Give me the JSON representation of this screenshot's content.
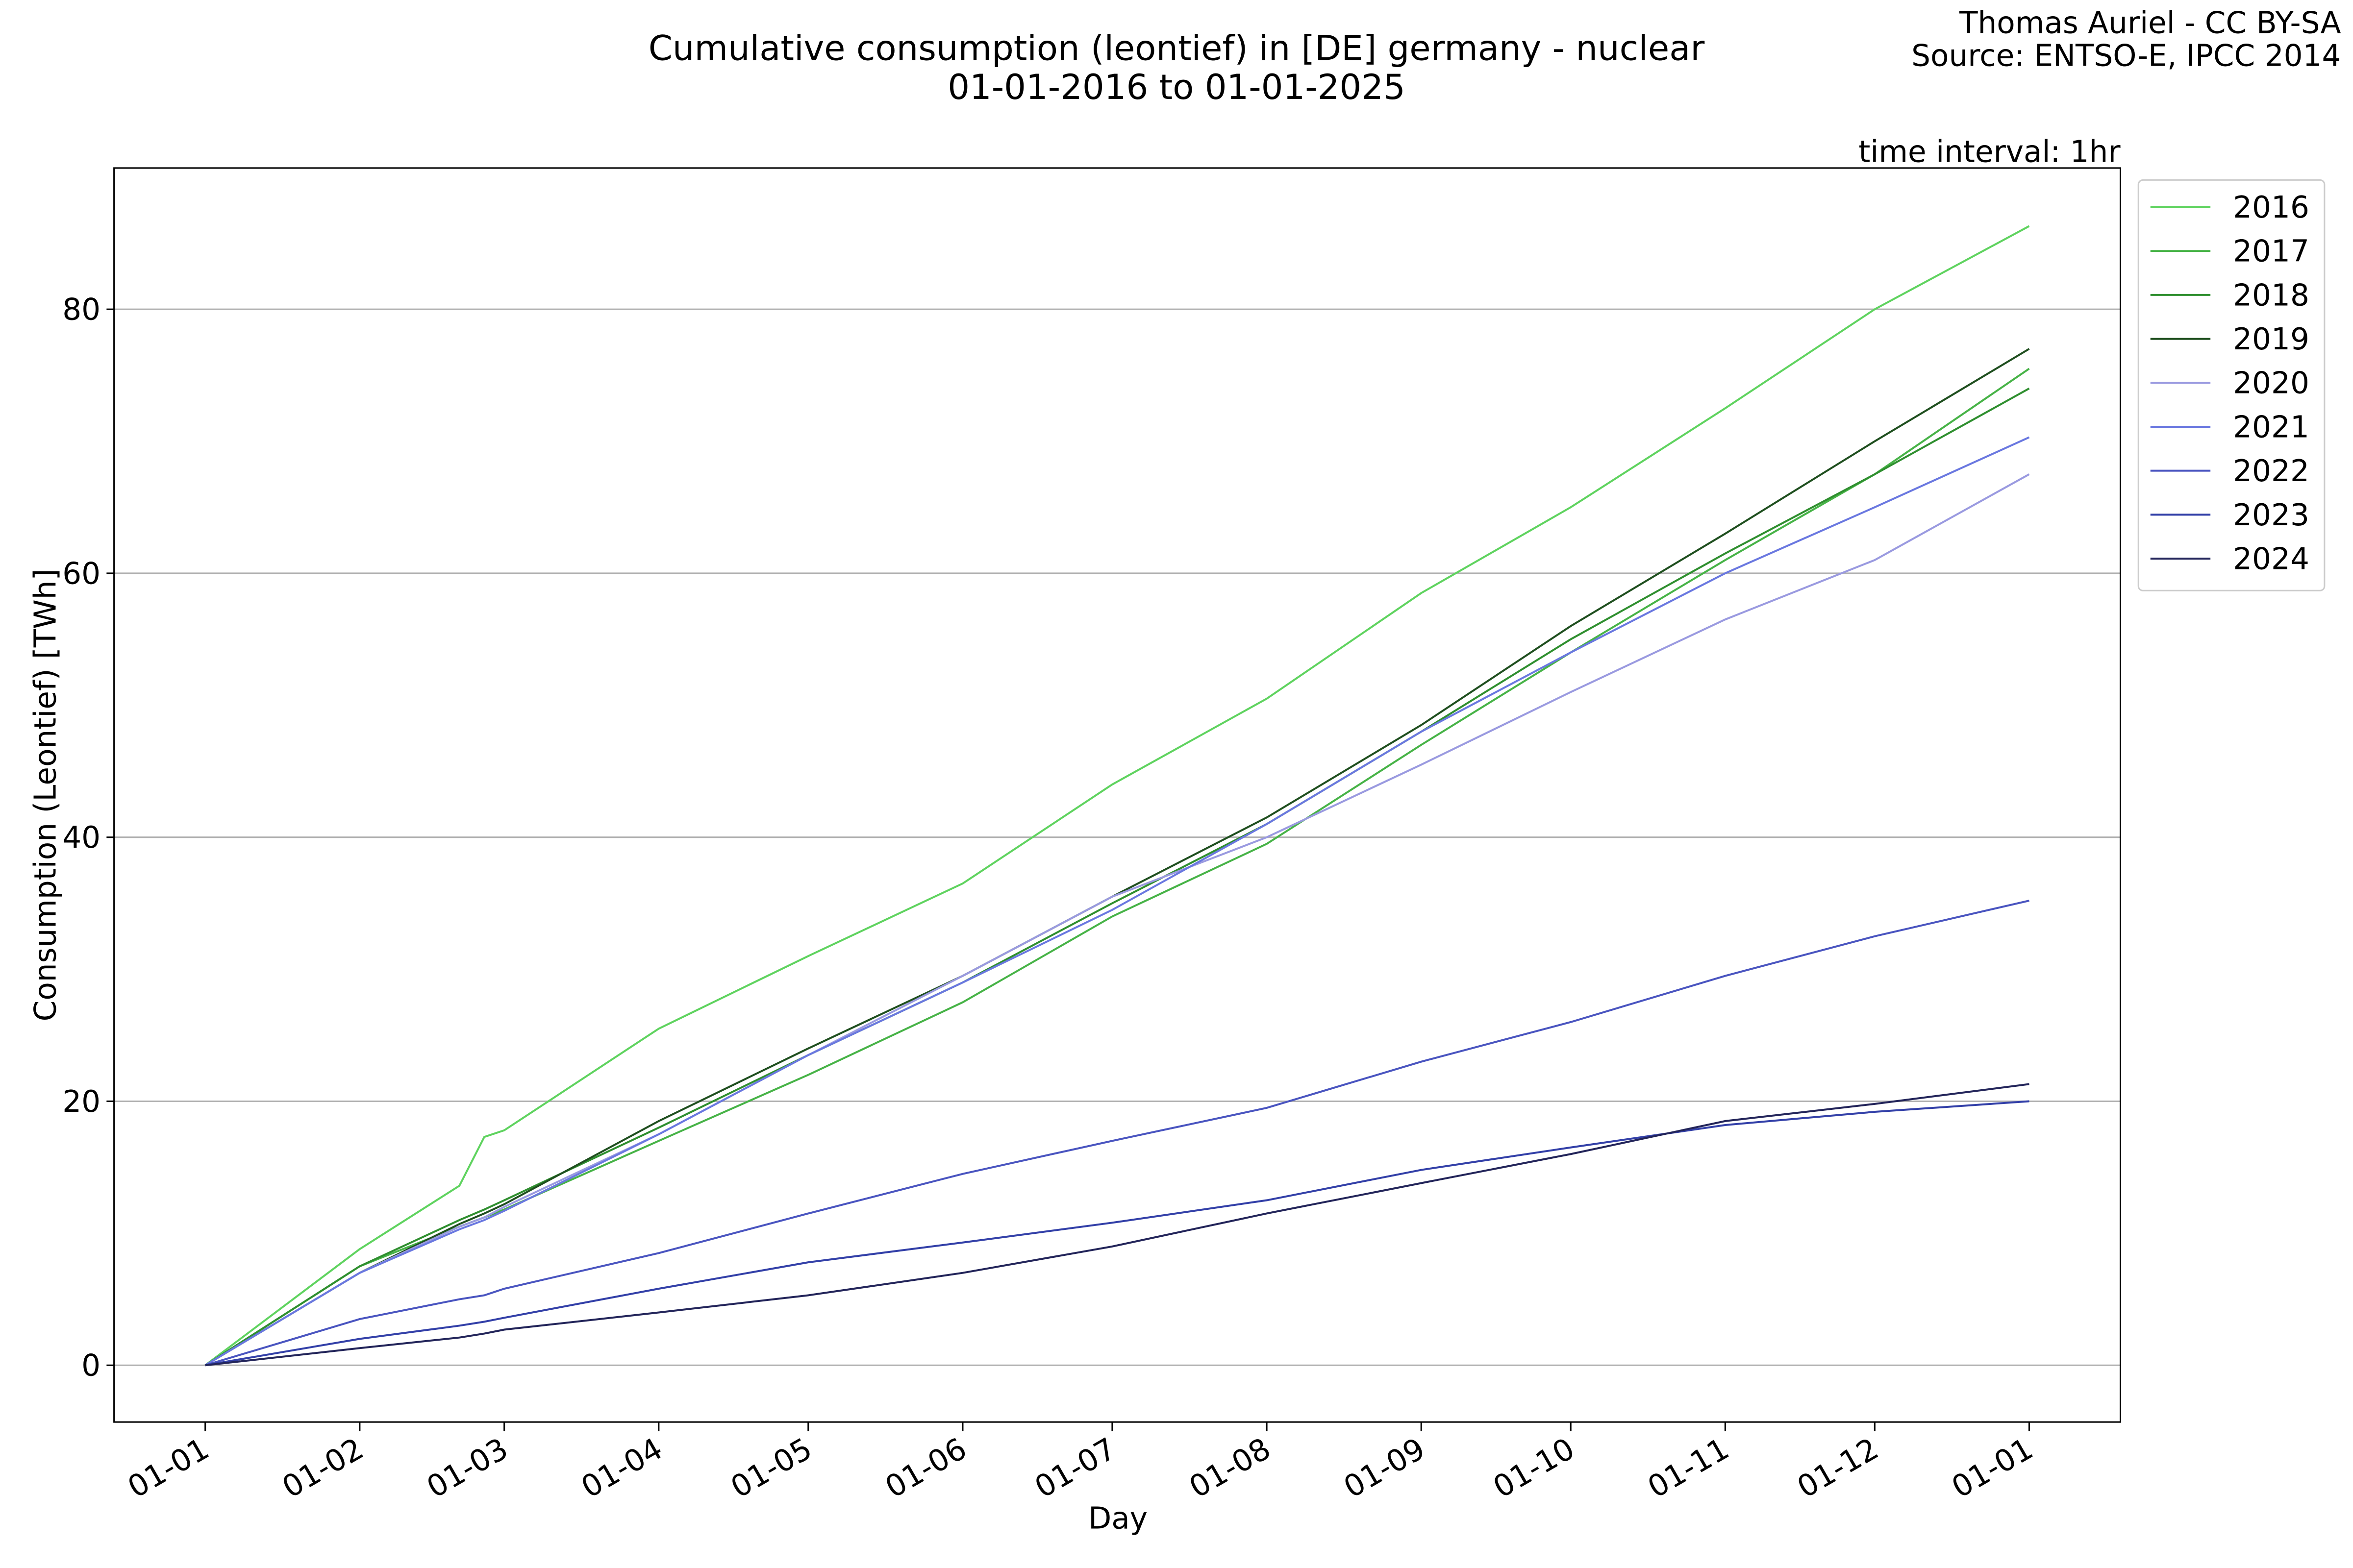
{
  "chart_data": {
    "type": "line",
    "title": "Cumulative consumption (leontief) in [DE] germany - nuclear",
    "subtitle": "01-01-2016 to 01-01-2025",
    "credit": [
      "Thomas Auriel - CC BY-SA",
      "Source: ENTSO-E, IPCC 2014"
    ],
    "annotation": "time interval: 1hr",
    "x_label": "Day",
    "y_label": "Consumption (Leontief) [TWh]",
    "x": [
      0,
      31,
      51,
      56,
      60,
      91,
      121,
      152,
      182,
      213,
      244,
      274,
      305,
      335,
      366
    ],
    "xlim": [
      -18.3,
      384.3
    ],
    "xticks": [
      {
        "value": 0,
        "label": "01-01"
      },
      {
        "value": 31,
        "label": "01-02"
      },
      {
        "value": 60,
        "label": "01-03"
      },
      {
        "value": 91,
        "label": "01-04"
      },
      {
        "value": 121,
        "label": "01-05"
      },
      {
        "value": 152,
        "label": "01-06"
      },
      {
        "value": 182,
        "label": "01-07"
      },
      {
        "value": 213,
        "label": "01-08"
      },
      {
        "value": 244,
        "label": "01-09"
      },
      {
        "value": 274,
        "label": "01-10"
      },
      {
        "value": 305,
        "label": "01-11"
      },
      {
        "value": 335,
        "label": "01-12"
      },
      {
        "value": 366,
        "label": "01-01"
      }
    ],
    "ylim": [
      -4.3,
      90.7
    ],
    "yticks": [
      0,
      20,
      40,
      60,
      80
    ],
    "grid": true,
    "legend": "outside-upper-right",
    "series": [
      {
        "name": "2016",
        "color": "#5fd35f",
        "values": [
          0,
          8.8,
          13.6,
          17.3,
          17.8,
          25.5,
          31,
          36.5,
          44,
          50.5,
          58.5,
          65,
          72.5,
          80,
          86.3
        ]
      },
      {
        "name": "2017",
        "color": "#47b347",
        "values": [
          0,
          7.5,
          10.5,
          11.2,
          11.8,
          17,
          22,
          27.5,
          34,
          39.5,
          47,
          54,
          61,
          67.5,
          75.5
        ]
      },
      {
        "name": "2018",
        "color": "#2f8f2f",
        "values": [
          0,
          7.5,
          11,
          11.8,
          12.5,
          18,
          23.5,
          29,
          35,
          41,
          48,
          55,
          61.5,
          67.5,
          74
        ]
      },
      {
        "name": "2019",
        "color": "#1f4f1f",
        "values": [
          0,
          7,
          10.7,
          11.5,
          12.2,
          18.5,
          24,
          29.5,
          35.5,
          41.5,
          48.5,
          56,
          63,
          70,
          77
        ]
      },
      {
        "name": "2020",
        "color": "#9a9ae0",
        "values": [
          0,
          7,
          10.5,
          11.2,
          12,
          17.5,
          23.5,
          29.5,
          35.5,
          40,
          45.5,
          51,
          56.5,
          61,
          67.5
        ]
      },
      {
        "name": "2021",
        "color": "#6a78e0",
        "values": [
          0,
          7,
          10.3,
          11,
          11.7,
          17.5,
          23.5,
          29,
          34.5,
          41,
          48,
          54,
          60,
          65,
          70.3
        ]
      },
      {
        "name": "2022",
        "color": "#4a55c0",
        "values": [
          0,
          3.5,
          5,
          5.3,
          5.8,
          8.5,
          11.5,
          14.5,
          17,
          19.5,
          23,
          26,
          29.5,
          32.5,
          35.2
        ]
      },
      {
        "name": "2023",
        "color": "#3340a8",
        "values": [
          0,
          2,
          3,
          3.3,
          3.6,
          5.8,
          7.8,
          9.3,
          10.8,
          12.5,
          14.8,
          16.5,
          18.2,
          19.2,
          20
        ]
      },
      {
        "name": "2024",
        "color": "#23255a",
        "values": [
          0,
          1.3,
          2.1,
          2.4,
          2.7,
          4,
          5.3,
          7,
          9,
          11.5,
          13.8,
          16,
          18.5,
          19.8,
          21.3
        ]
      }
    ]
  }
}
